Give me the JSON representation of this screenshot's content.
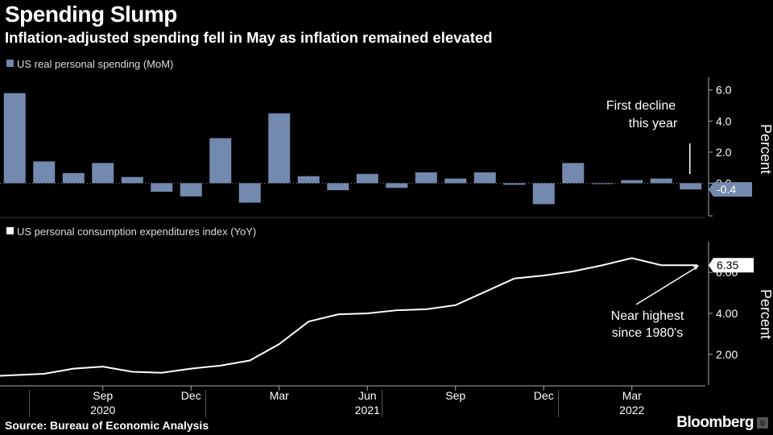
{
  "header": {
    "title": "Spending Slump",
    "subtitle": "Inflation-adjusted spending fell in May as inflation remained elevated"
  },
  "footer": {
    "source": "Source: Bureau of Economic Analysis",
    "brand": "Bloomberg",
    "badge": "©"
  },
  "colors": {
    "bar": "#7389ad",
    "line": "#ffffff",
    "background": "#000000",
    "grid": "#444444"
  },
  "chart_data": [
    {
      "type": "bar",
      "legend": "US real personal spending (MoM)",
      "ylabel": "Percent",
      "ylim": [
        -2.0,
        6.4
      ],
      "yticks": [
        "6.0",
        "4.0",
        "2.0",
        "0.0"
      ],
      "categories": [
        "2020-06",
        "2020-07",
        "2020-08",
        "2020-09",
        "2020-10",
        "2020-11",
        "2020-12",
        "2021-01",
        "2021-02",
        "2021-03",
        "2021-04",
        "2021-05",
        "2021-06",
        "2021-07",
        "2021-08",
        "2021-09",
        "2021-10",
        "2021-11",
        "2021-12",
        "2022-01",
        "2022-02",
        "2022-03",
        "2022-04",
        "2022-05"
      ],
      "values": [
        5.8,
        1.4,
        0.65,
        1.3,
        0.4,
        -0.55,
        -0.85,
        2.9,
        -1.25,
        4.5,
        0.45,
        -0.45,
        0.6,
        -0.3,
        0.7,
        0.3,
        0.7,
        -0.1,
        -1.35,
        1.3,
        -0.05,
        0.2,
        0.3,
        -0.4
      ],
      "last_value_label": "-0.4",
      "annotation": [
        "First decline",
        "this year"
      ]
    },
    {
      "type": "line",
      "legend": "US personal consumption expenditures index (YoY)",
      "ylabel": "Percent",
      "ylim": [
        0.5,
        7.5
      ],
      "yticks": [
        "6.00",
        "4.00",
        "2.00"
      ],
      "categories": [
        "2020-06",
        "2020-07",
        "2020-08",
        "2020-09",
        "2020-10",
        "2020-11",
        "2020-12",
        "2021-01",
        "2021-02",
        "2021-03",
        "2021-04",
        "2021-05",
        "2021-06",
        "2021-07",
        "2021-08",
        "2021-09",
        "2021-10",
        "2021-11",
        "2021-12",
        "2022-01",
        "2022-02",
        "2022-03",
        "2022-04",
        "2022-05"
      ],
      "values": [
        0.95,
        1.05,
        1.3,
        1.4,
        1.15,
        1.1,
        1.3,
        1.45,
        1.7,
        2.5,
        3.6,
        3.95,
        4.0,
        4.15,
        4.2,
        4.4,
        5.05,
        5.7,
        5.85,
        6.05,
        6.35,
        6.7,
        6.35,
        6.35
      ],
      "last_value_label": "6.35",
      "annotation": [
        "Near highest",
        "since 1980's"
      ]
    }
  ],
  "x_axis": {
    "month_labels": [
      {
        "index": 3,
        "label": "Sep"
      },
      {
        "index": 6,
        "label": "Dec"
      },
      {
        "index": 9,
        "label": "Mar"
      },
      {
        "index": 12,
        "label": "Jun"
      },
      {
        "index": 15,
        "label": "Sep"
      },
      {
        "index": 18,
        "label": "Dec"
      },
      {
        "index": 21,
        "label": "Mar"
      }
    ],
    "year_labels": [
      {
        "index": 3,
        "label": "2020"
      },
      {
        "index": 12,
        "label": "2021"
      },
      {
        "index": 21,
        "label": "2022"
      }
    ]
  }
}
